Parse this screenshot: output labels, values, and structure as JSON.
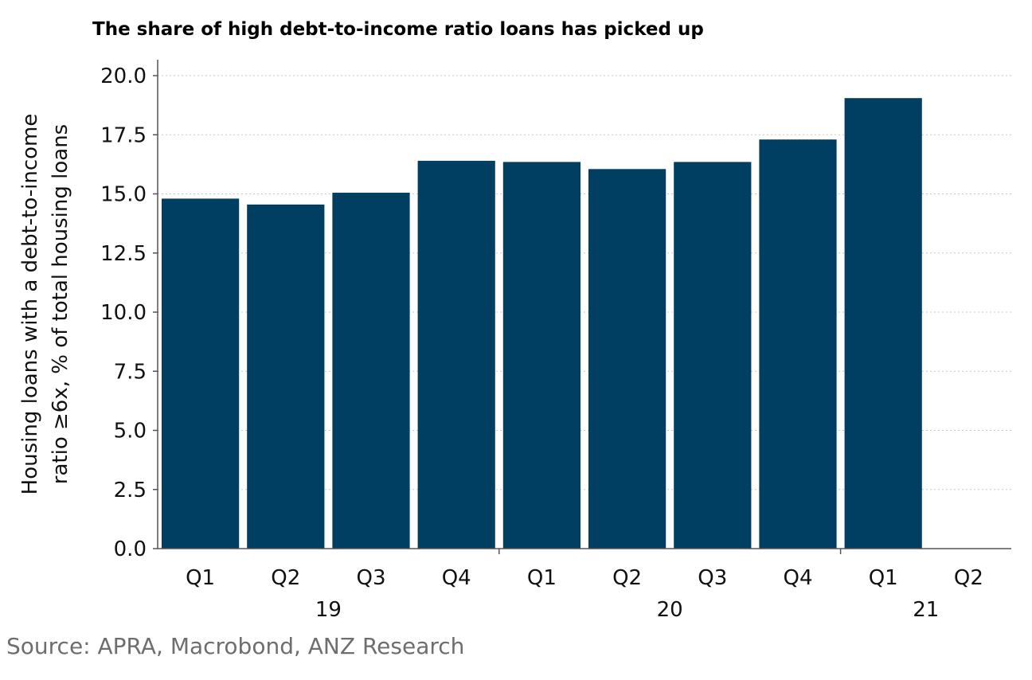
{
  "chart_data": {
    "type": "bar",
    "title": "The share of high debt-to-income ratio loans has picked up",
    "ylabel_lines": [
      "Housing loans with a debt-to-income",
      "ratio ≥6x, % of total housing loans"
    ],
    "xlabel": "",
    "categories": [
      "Q1",
      "Q2",
      "Q3",
      "Q4",
      "Q1",
      "Q2",
      "Q3",
      "Q4",
      "Q1",
      "Q2"
    ],
    "year_groups": [
      {
        "label": "19",
        "start": 0,
        "end": 3
      },
      {
        "label": "20",
        "start": 4,
        "end": 7
      },
      {
        "label": "21",
        "start": 8,
        "end": 9
      }
    ],
    "values": [
      14.8,
      14.55,
      15.05,
      16.4,
      16.35,
      16.05,
      16.35,
      17.3,
      19.05,
      null
    ],
    "ylim": [
      0,
      20
    ],
    "yticks": [
      "0.0",
      "2.5",
      "5.0",
      "7.5",
      "10.0",
      "12.5",
      "15.0",
      "17.5",
      "20.0"
    ],
    "grid": true,
    "bar_color": "#003f62",
    "source": "Source: APRA, Macrobond, ANZ Research"
  }
}
